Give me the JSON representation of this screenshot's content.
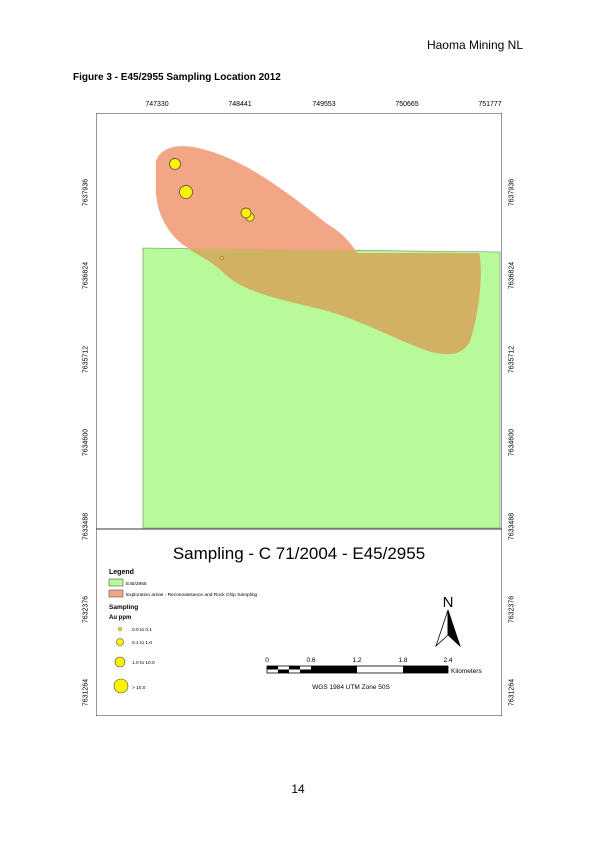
{
  "header": {
    "company": "Haoma Mining NL"
  },
  "figure": {
    "caption": "Figure 3 - E45/2955 Sampling Location 2012"
  },
  "map": {
    "title": "Sampling - C 71/2004 - E45/2955",
    "x_ticks": [
      "747330",
      "748441",
      "749553",
      "750665",
      "751777"
    ],
    "y_ticks": [
      "7637936",
      "7636824",
      "7635712",
      "7634600",
      "7633488",
      "7632376",
      "7631264"
    ],
    "colors": {
      "tenement": "#b8f99a",
      "exploration": "#f2a686",
      "overlap": "#d1b264",
      "sample": "#fff200"
    },
    "legend": {
      "title": "Legend",
      "tenement_label": "E45/2955",
      "exploration_label": "Exploration areas - Reconnaissance and Rock Chip Sampling",
      "sampling_title": "Sampling",
      "unit": "Au ppm",
      "classes": [
        "0.0 to 0.1",
        "0.1 to 1.0",
        "1.0 to 10.0",
        "> 10.0"
      ]
    },
    "scalebar": {
      "labels": [
        "0",
        "0.6",
        "1.2",
        "1.8",
        "2.4"
      ],
      "unit": "Kilometers"
    },
    "projection": "WGS 1984 UTM Zone 50S",
    "north": "N",
    "north_icon": "north-arrow-icon"
  },
  "page": {
    "number": "14"
  }
}
